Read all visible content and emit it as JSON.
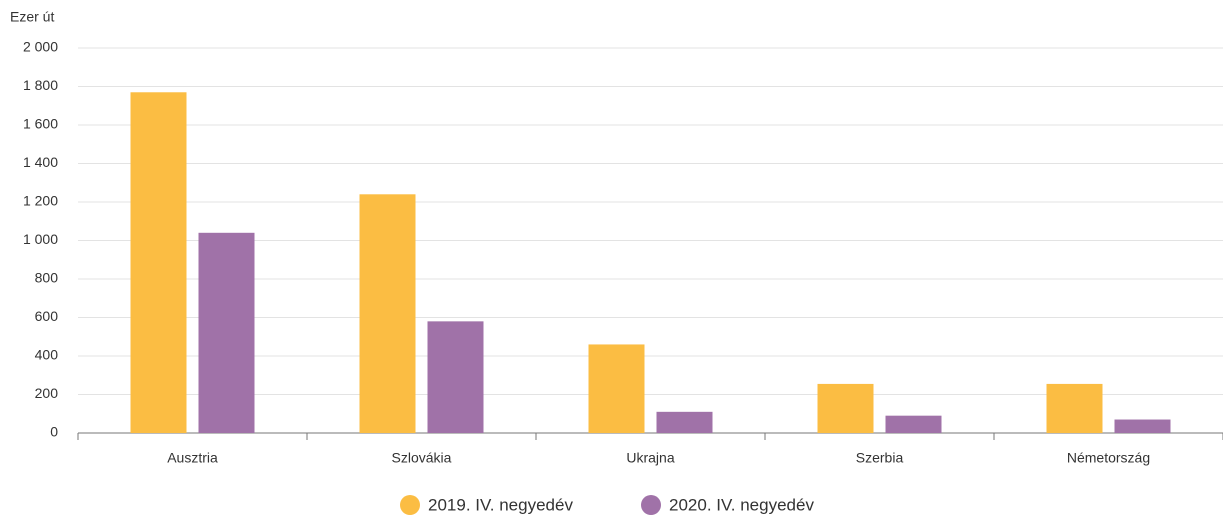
{
  "chart_data": {
    "type": "bar",
    "y_axis_label": "Ezer út",
    "categories": [
      "Ausztria",
      "Szlovákia",
      "Ukrajna",
      "Szerbia",
      "Németország"
    ],
    "series": [
      {
        "name": "2019. IV. negyedév",
        "color": "#fbbd43",
        "values": [
          1770,
          1240,
          460,
          255,
          255
        ]
      },
      {
        "name": "2020. IV. negyedév",
        "color": "#a072a8",
        "values": [
          1040,
          580,
          110,
          90,
          70
        ]
      }
    ],
    "ylim": [
      0,
      2000
    ],
    "yticks": [
      0,
      200,
      400,
      600,
      800,
      {
        "value": 1000,
        "label": "1 000"
      },
      {
        "value": 1200,
        "label": "1 200"
      },
      {
        "value": 1400,
        "label": "1 400"
      },
      {
        "value": 1600,
        "label": "1 600"
      },
      {
        "value": 1800,
        "label": "1 800"
      },
      {
        "value": 2000,
        "label": "2 000"
      }
    ],
    "grid": true,
    "legend": "bottom"
  }
}
